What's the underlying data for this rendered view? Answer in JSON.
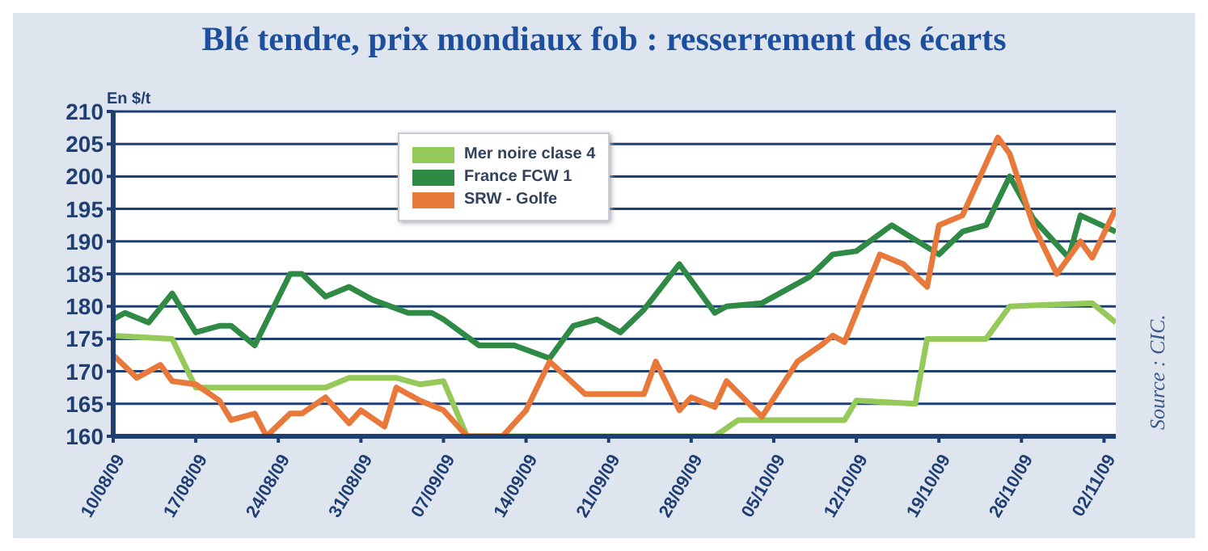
{
  "chart_data": {
    "type": "line",
    "title": "Blé tendre, prix mondiaux fob : resserrement des écarts",
    "ylabel": "En $/t",
    "annotations": [
      "Source : CIC."
    ],
    "series": [
      {
        "name": "Mer noire clase 4",
        "color": "#95c95a",
        "x": [
          "--08-10",
          "--08-15",
          "--08-17",
          "--08-28",
          "--08-30",
          "--09-03",
          "--09-05",
          "--09-07",
          "--09-09",
          "--09-30",
          "--10-02",
          "--10-11",
          "--10-12",
          "--10-17",
          "--10-18",
          "--10-23",
          "--10-25",
          "--11-01",
          "--11-03"
        ],
        "values": [
          175.5,
          175,
          167.5,
          167.5,
          169,
          169,
          168,
          168.5,
          160,
          160,
          162.5,
          162.5,
          165.5,
          165,
          175,
          175,
          180,
          180.5,
          177.5
        ]
      },
      {
        "name": "France FCW 1",
        "color": "#2f8a45",
        "x": [
          "--08-10",
          "--08-11",
          "--08-13",
          "--08-15",
          "--08-17",
          "--08-19",
          "--08-20",
          "--08-22",
          "--08-25",
          "--08-26",
          "--08-28",
          "--08-30",
          "--09-01",
          "--09-04",
          "--09-06",
          "--09-07",
          "--09-10",
          "--09-13",
          "--09-16",
          "--09-18",
          "--09-20",
          "--09-22",
          "--09-24",
          "--09-27",
          "--09-30",
          "--10-01",
          "--10-04",
          "--10-06",
          "--10-08",
          "--10-10",
          "--10-12",
          "--10-15",
          "--10-19",
          "--10-21",
          "--10-23",
          "--10-25",
          "--10-27",
          "--10-30",
          "--10-31",
          "--11-03"
        ],
        "values": [
          178,
          179,
          177.5,
          182,
          176,
          177,
          177,
          174,
          185,
          185,
          181.5,
          183,
          181,
          179,
          179,
          178,
          174,
          174,
          172,
          177,
          178,
          176,
          179.5,
          186.5,
          179,
          180,
          180.5,
          182.5,
          184.5,
          188,
          188.5,
          192.5,
          188,
          191.5,
          192.5,
          200,
          193.5,
          187.5,
          194,
          191.5
        ]
      },
      {
        "name": "SRW - Golfe",
        "color": "#e8793a",
        "x": [
          "--08-10",
          "--08-12",
          "--08-14",
          "--08-15",
          "--08-17",
          "--08-19",
          "--08-20",
          "--08-22",
          "--08-23",
          "--08-25",
          "--08-26",
          "--08-28",
          "--08-30",
          "--08-31",
          "--09-02",
          "--09-03",
          "--09-05",
          "--09-07",
          "--09-09",
          "--09-12",
          "--09-14",
          "--09-16",
          "--09-19",
          "--09-24",
          "--09-25",
          "--09-27",
          "--09-28",
          "--09-30",
          "--10-01",
          "--10-04",
          "--10-07",
          "--10-09",
          "--10-10",
          "--10-11",
          "--10-14",
          "--10-16",
          "--10-18",
          "--10-19",
          "--10-21",
          "--10-24",
          "--10-25",
          "--10-27",
          "--10-29",
          "--10-31",
          "--11-01",
          "--11-03"
        ],
        "values": [
          172.5,
          169,
          171,
          168.5,
          168,
          165.5,
          162.5,
          163.5,
          160,
          163.5,
          163.5,
          166,
          162,
          164,
          161.5,
          167.5,
          165.5,
          164,
          160,
          160,
          164,
          171.5,
          166.5,
          166.5,
          171.5,
          164,
          166,
          164.5,
          168.5,
          163,
          171.5,
          174,
          175.5,
          174.5,
          188,
          186.5,
          183,
          192.5,
          194,
          206,
          203.5,
          192.5,
          185,
          190,
          187.5,
          195
        ]
      }
    ],
    "xlim": [
      "--08-10",
      "--11-03"
    ],
    "xticks": [
      {
        "value": "--08-10",
        "label": "10/08/09"
      },
      {
        "value": "--08-17",
        "label": "17/08/09"
      },
      {
        "value": "--08-24",
        "label": "24/08/09"
      },
      {
        "value": "--08-31",
        "label": "31/08/09"
      },
      {
        "value": "--09-07",
        "label": "07/09/09"
      },
      {
        "value": "--09-14",
        "label": "14/09/09"
      },
      {
        "value": "--09-21",
        "label": "21/09/09"
      },
      {
        "value": "--09-28",
        "label": "28/09/09"
      },
      {
        "value": "--10-05",
        "label": "05/10/09"
      },
      {
        "value": "--10-12",
        "label": "12/10/09"
      },
      {
        "value": "--10-19",
        "label": "19/10/09"
      },
      {
        "value": "--10-26",
        "label": "26/10/09"
      },
      {
        "value": "--11-02",
        "label": "02/11/09"
      }
    ],
    "ylim": [
      160,
      210
    ],
    "yticks": [
      160,
      165,
      170,
      175,
      180,
      185,
      190,
      195,
      200,
      205,
      210
    ],
    "grid": "y",
    "legend": "top left",
    "marker": "none",
    "line_style": "solid"
  }
}
